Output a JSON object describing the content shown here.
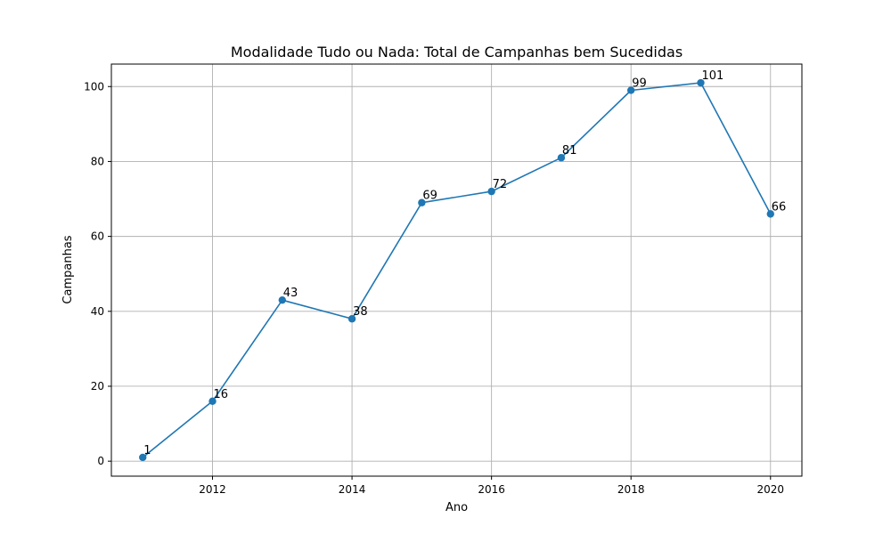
{
  "chart_data": {
    "type": "line",
    "title": "Modalidade Tudo ou Nada: Total de Campanhas bem Sucedidas",
    "xlabel": "Ano",
    "ylabel": "Campanhas",
    "x": [
      2011,
      2012,
      2013,
      2014,
      2015,
      2016,
      2017,
      2018,
      2019,
      2020
    ],
    "series": [
      {
        "values": [
          1,
          16,
          43,
          38,
          69,
          72,
          81,
          99,
          101,
          66
        ],
        "color": "#1f77b4"
      }
    ],
    "data_labels": [
      "1",
      "16",
      "43",
      "38",
      "69",
      "72",
      "81",
      "99",
      "101",
      "66"
    ],
    "x_ticks": [
      2012,
      2014,
      2016,
      2018,
      2020
    ],
    "x_tick_labels": [
      "2012",
      "2014",
      "2016",
      "2018",
      "2020"
    ],
    "y_ticks": [
      0,
      20,
      40,
      60,
      80,
      100
    ],
    "y_tick_labels": [
      "0",
      "20",
      "40",
      "60",
      "80",
      "100"
    ],
    "xlim": [
      2010.55,
      2020.45
    ],
    "ylim": [
      -4,
      106
    ],
    "grid": true,
    "marker": "circle"
  }
}
